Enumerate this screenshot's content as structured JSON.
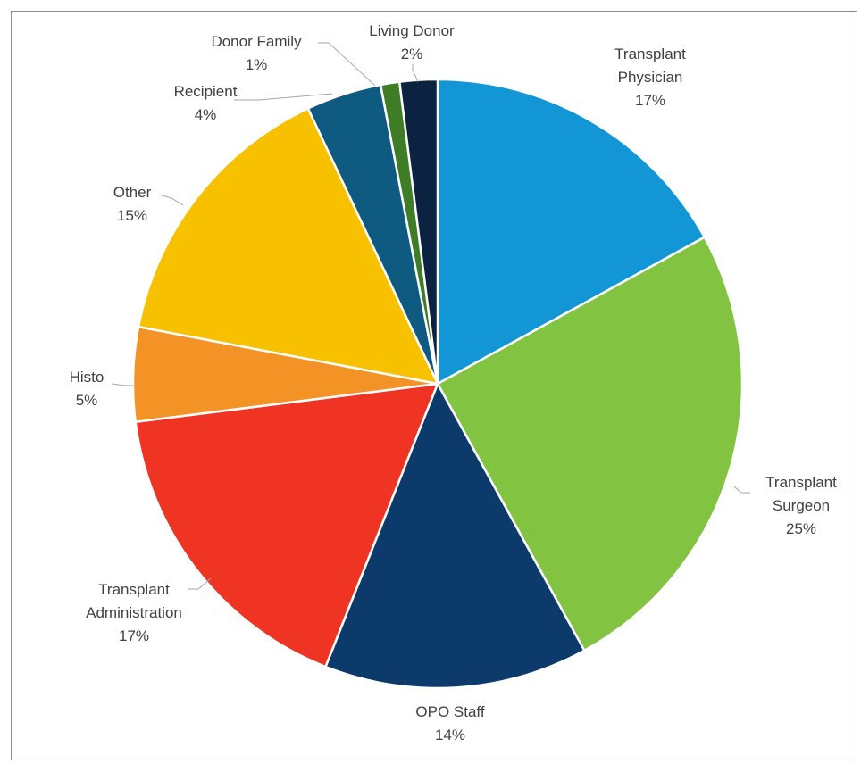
{
  "chart_data": {
    "type": "pie",
    "categories": [
      "Transplant Physician",
      "Transplant Surgeon",
      "OPO Staff",
      "Transplant Administration",
      "Histo",
      "Other",
      "Recipient",
      "Donor Family",
      "Living Donor"
    ],
    "values": [
      17,
      25,
      14,
      17,
      5,
      15,
      4,
      1,
      2
    ],
    "value_labels": [
      "17%",
      "25%",
      "14%",
      "17%",
      "5%",
      "15%",
      "4%",
      "1%",
      "2%"
    ],
    "colors": [
      "#1396d6",
      "#82c341",
      "#0c3a6b",
      "#ef3424",
      "#f39325",
      "#f7c100",
      "#0e5a80",
      "#3e7d26",
      "#0b2340"
    ]
  }
}
